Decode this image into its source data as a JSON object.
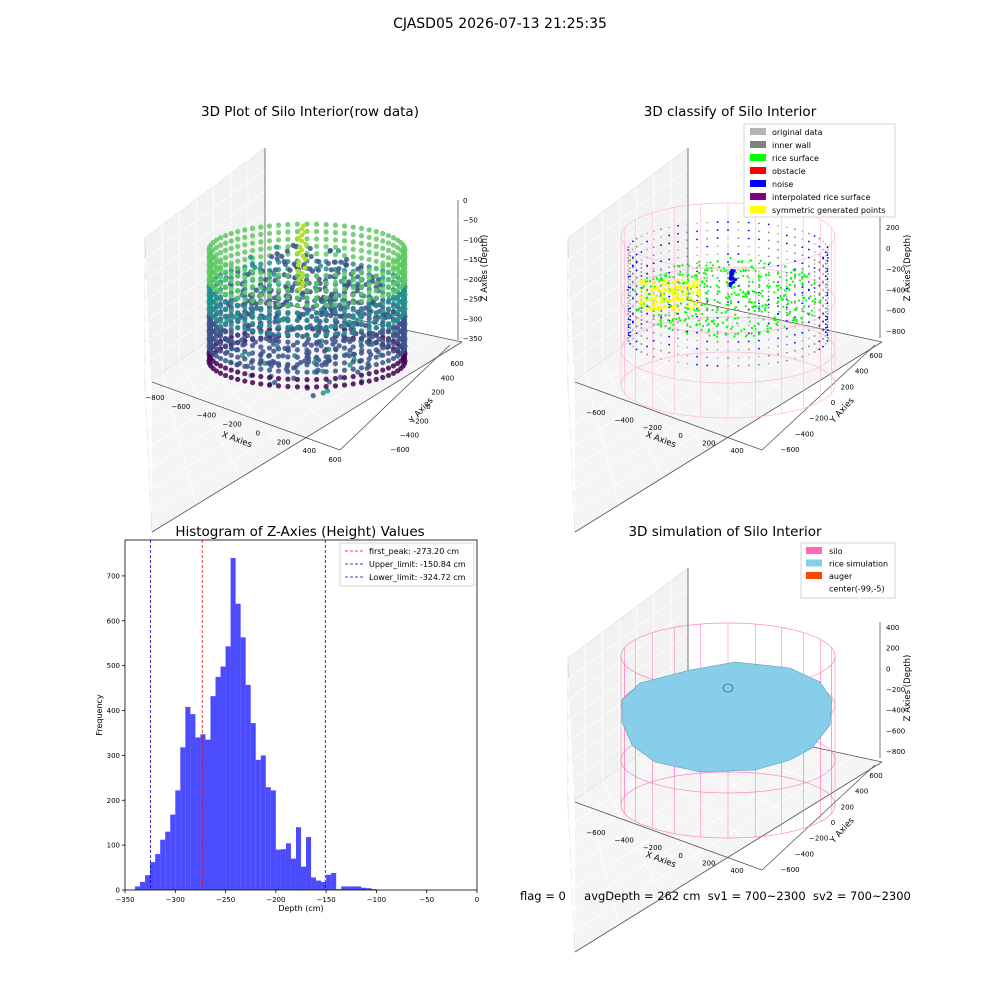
{
  "figure": {
    "suptitle": "CJASD05 2026-07-13 21:25:35",
    "status": {
      "flag": "flag = 0",
      "avg_depth": "avgDepth = 262 cm",
      "sv1": "sv1 = 700~2300",
      "sv2": "sv2 = 700~2300"
    }
  },
  "chart_data": [
    {
      "type": "scatter",
      "title": "3D Plot of Silo Interior(row data)",
      "xlabel": "X Axies",
      "ylabel": "Y Axies",
      "zlabel": "Z Axies (Depth)",
      "x_ticks": [
        "−800",
        "−600",
        "−400",
        "−200",
        "0",
        "200",
        "400",
        "600"
      ],
      "y_ticks": [
        "−600",
        "−400",
        "−200",
        "0",
        "200",
        "400",
        "600"
      ],
      "z_ticks": [
        "0",
        "−50",
        "−100",
        "−150",
        "−200",
        "−250",
        "−300",
        "−350"
      ],
      "colormap": [
        "#440154",
        "#3b528b",
        "#21918c",
        "#5ec962",
        "#fde725"
      ]
    },
    {
      "type": "scatter",
      "title": "3D classify of Silo Interior",
      "xlabel": "X Axies",
      "ylabel": "Y Axies",
      "zlabel": "Z Axies (Depth)",
      "x_ticks": [
        "−600",
        "−400",
        "−200",
        "0",
        "200",
        "400"
      ],
      "y_ticks": [
        "−600",
        "−400",
        "−200",
        "0",
        "200",
        "400",
        "600"
      ],
      "z_ticks": [
        "200",
        "0",
        "−200",
        "−400",
        "−600",
        "−800"
      ],
      "legend": [
        {
          "label": "original data",
          "color": "#b3b3b3"
        },
        {
          "label": "inner wall",
          "color": "#808080"
        },
        {
          "label": "rice surface",
          "color": "#00ff00"
        },
        {
          "label": "obstacle",
          "color": "#ff0000"
        },
        {
          "label": "noise",
          "color": "#0000ff"
        },
        {
          "label": "interpolated rice surface",
          "color": "#800080"
        },
        {
          "label": "symmetric generated points",
          "color": "#ffff00"
        }
      ],
      "legend_loc": "upper right"
    },
    {
      "type": "bar",
      "title": "Histogram of Z-Axies (Height) Values",
      "xlabel": "Depth (cm)",
      "ylabel": "Frequency",
      "xlim": [
        -350,
        0
      ],
      "ylim": [
        0,
        780
      ],
      "x_ticks": [
        "−350",
        "−300",
        "−250",
        "−200",
        "−150",
        "−100",
        "−50",
        "0"
      ],
      "y_ticks": [
        "0",
        "100",
        "200",
        "300",
        "400",
        "500",
        "600",
        "700"
      ],
      "bin_start": -340,
      "bin_width": 5,
      "values": [
        8,
        18,
        33,
        62,
        80,
        112,
        130,
        168,
        222,
        318,
        408,
        392,
        340,
        347,
        335,
        432,
        475,
        498,
        543,
        740,
        638,
        563,
        457,
        372,
        290,
        300,
        229,
        222,
        90,
        91,
        104,
        70,
        140,
        52,
        118,
        28,
        21,
        18,
        34,
        38,
        2,
        8,
        8,
        8,
        8,
        5,
        4,
        2
      ],
      "color": "#0000ff",
      "vlines": [
        {
          "label": "first_peak: -273.20 cm",
          "x": -273.2,
          "color": "#ff0000"
        },
        {
          "label": "Upper_limit: -150.84 cm",
          "x": -150.84,
          "color": "#0000cc"
        },
        {
          "label": "Lower_limit: -324.72 cm",
          "x": -324.72,
          "color": "#0000cc"
        }
      ],
      "legend_loc": "upper right"
    },
    {
      "type": "scatter",
      "title": "3D simulation of Silo Interior",
      "xlabel": "X Axies",
      "ylabel": "Y Axies",
      "zlabel": "Z Axies (Depth)",
      "x_ticks": [
        "−600",
        "−400",
        "−200",
        "0",
        "200",
        "400"
      ],
      "y_ticks": [
        "−600",
        "−400",
        "−200",
        "0",
        "200",
        "400",
        "600"
      ],
      "z_ticks": [
        "400",
        "200",
        "0",
        "−200",
        "−400",
        "−600",
        "−800"
      ],
      "legend": [
        {
          "label": "silo",
          "color": "#ff69b4"
        },
        {
          "label": "rice simulation",
          "color": "#87ceeb"
        },
        {
          "label": "auger",
          "color": "#ff4500"
        },
        {
          "label": "center(-99,-5)",
          "color": "none"
        }
      ],
      "legend_loc": "upper right"
    }
  ]
}
